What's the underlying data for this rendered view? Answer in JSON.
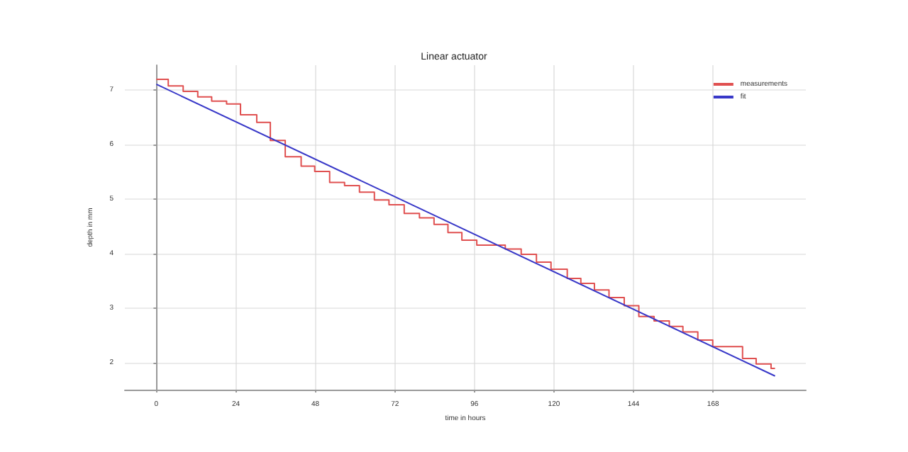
{
  "chart_data": {
    "type": "step",
    "title": "Linear actuator",
    "xlabel": "time in hours",
    "ylabel": "depth in mm",
    "xlim": [
      -9.5,
      196
    ],
    "xticks": [
      0,
      24,
      48,
      72,
      96,
      120,
      144,
      168
    ],
    "ylim": [
      1.5,
      7.45
    ],
    "yticks": [
      2,
      3,
      4,
      5,
      6,
      7
    ],
    "grid": true,
    "legend": "top right",
    "marker": "none",
    "series": [
      {
        "name": "measurements",
        "color": "#e05050",
        "type": "step",
        "x": [
          0,
          3.6,
          8.1,
          12.5,
          16.7,
          21.2,
          25.4,
          30.3,
          34.4,
          38.9,
          43.7,
          47.8,
          52.3,
          56.8,
          61.3,
          65.8,
          70.2,
          74.8,
          79.4,
          83.8,
          88,
          92.2,
          96.7,
          105.3,
          110.1,
          114.7,
          119.1,
          124,
          128.1,
          132.2,
          136.6,
          141.2,
          145.6,
          150.2,
          154.8,
          158.9,
          163.4,
          167.9,
          176.9,
          181,
          185.5,
          186.7
        ],
        "values": [
          7.19,
          7.07,
          6.97,
          6.87,
          6.79,
          6.74,
          6.54,
          6.4,
          6.07,
          5.77,
          5.6,
          5.5,
          5.3,
          5.24,
          5.12,
          4.98,
          4.89,
          4.73,
          4.65,
          4.53,
          4.38,
          4.24,
          4.15,
          4.08,
          3.98,
          3.84,
          3.71,
          3.54,
          3.45,
          3.33,
          3.19,
          3.04,
          2.84,
          2.76,
          2.66,
          2.56,
          2.41,
          2.29,
          2.07,
          1.97,
          1.89,
          1.89
        ]
      },
      {
        "name": "fit",
        "color": "#3838c8",
        "type": "line",
        "x": [
          0,
          186.7
        ],
        "values": [
          7.1,
          1.75
        ]
      }
    ]
  }
}
